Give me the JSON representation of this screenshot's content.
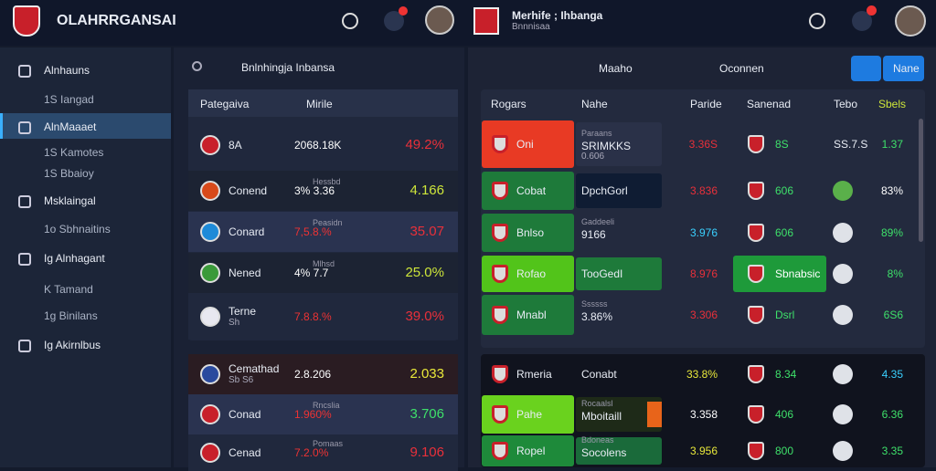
{
  "header": {
    "brand": "OLAHRRGANSAI",
    "title": "Merhife ; Ihbanga",
    "subtitle": "Bnnnisaa"
  },
  "sidebar": {
    "items": [
      "Alnhauns",
      "1S Iangad",
      "AlnMaaaet",
      "1S Kamotes",
      "1S Bbaioy",
      "Msklaingal",
      "1o Sbhnaitins",
      "Ig Alnhagant",
      "K Tamand",
      "1g Binilans",
      "Ig Akirnlbus"
    ]
  },
  "middle": {
    "search": "Bnlnhingja Inbansa",
    "columns": [
      "Pategaiva",
      "Mirile"
    ],
    "rows": [
      {
        "name": "8A",
        "mid": "2068.18K",
        "value": "49.2%"
      },
      {
        "name": "Conend",
        "note": "Hessbd",
        "mid": "3% 3.36",
        "value": "4.166"
      },
      {
        "name": "Conard",
        "note": "Peasidn",
        "mid": "7,5.8.%",
        "value": "35.07"
      },
      {
        "name": "Nened",
        "note": "Mlhsd",
        "mid": "4% 7.7",
        "value": "25.0%"
      },
      {
        "name": "Terne",
        "sub": "Sh",
        "mid": "7.8.8.%",
        "value": "39.0%"
      }
    ],
    "rows2": [
      {
        "name": "Cemathad",
        "sub": "Sb S6",
        "mid": "2.8.206",
        "value": "2.033"
      },
      {
        "name": "Conad",
        "note": "Rncslia",
        "mid": "1.960%",
        "value": "3.706"
      },
      {
        "name": "Cenad",
        "note": "Pomaas",
        "mid": "7.2.0%",
        "value": "9.106"
      }
    ]
  },
  "right": {
    "tabs": [
      "Maaho",
      "Oconnen"
    ],
    "button": "Nane",
    "columns": [
      "Rogars",
      "Nahe",
      "Paride",
      "Sanenad",
      "Tebo",
      "Sbels"
    ],
    "rows": [
      {
        "team": "Oni",
        "note": "Paraans",
        "name": "SRIMKKS",
        "detail": "0.606",
        "price": "3.36S",
        "team2": "8S",
        "score": "SS.7.S",
        "pct": "1.37"
      },
      {
        "team": "Cobat",
        "name": "DpchGorl",
        "price": "3.836",
        "team2": "606",
        "pct": "83%"
      },
      {
        "team": "Bnlso",
        "note": "Gaddeeli",
        "name": "9166",
        "price": "3.976",
        "team2": "606",
        "pct": "89%"
      },
      {
        "team": "Rofao",
        "name": "TooGedI",
        "price": "8.976",
        "team2": "Sbnabsic",
        "pct": "8%"
      },
      {
        "team": "Mnabl",
        "note": "Ssssss",
        "name": "3.86%",
        "price": "3.306",
        "team2": "Dsrl",
        "pct": "6S6"
      }
    ],
    "rows2": [
      {
        "team": "Rmeria",
        "name": "Conabt",
        "price": "33.8%",
        "team2": "8.34",
        "pct": "4.35"
      },
      {
        "team": "Pahe",
        "note": "Rocaalsl",
        "name": "Mboitaill",
        "price": "3.358",
        "team2": "406",
        "pct": "6.36"
      },
      {
        "team": "Ropel",
        "note": "Bdoneas",
        "name": "Socolens",
        "price": "3.956",
        "team2": "800",
        "pct": "3.35"
      }
    ]
  }
}
